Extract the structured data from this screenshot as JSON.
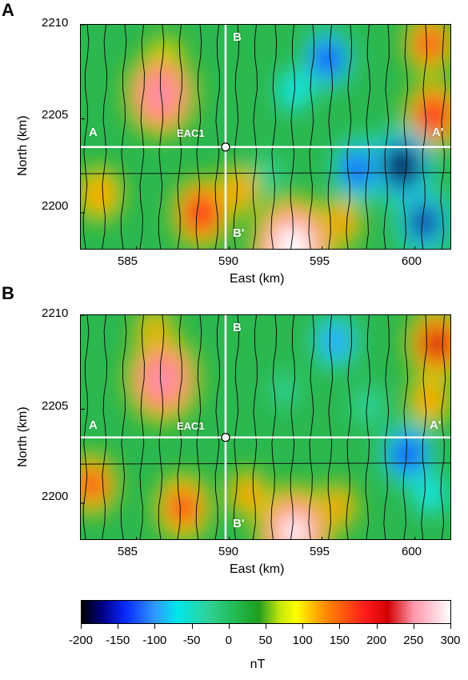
{
  "chart_data": [
    {
      "type": "heatmap",
      "panel_label": "A",
      "xlabel": "East (km)",
      "ylabel": "North (km)",
      "xlim": [
        582,
        602
      ],
      "ylim": [
        2198,
        2210
      ],
      "x_ticks": [
        585,
        590,
        595,
        600
      ],
      "y_ticks": [
        2200,
        2205,
        2210
      ],
      "profile_lines": [
        {
          "name": "A-A'",
          "start_label": "A",
          "end_label": "A'",
          "orientation": "east-west",
          "north_km": 2203.5
        },
        {
          "name": "B-B'",
          "start_label": "B",
          "end_label": "B'",
          "orientation": "north-south",
          "east_km": 589.8
        }
      ],
      "well": {
        "label": "EAC1",
        "east_km": 589.8,
        "north_km": 2203.5
      },
      "anomalies_nT": [
        {
          "east_km": 586.3,
          "north_km": 2206.3,
          "value": 230
        },
        {
          "east_km": 586.5,
          "north_km": 2208.0,
          "value": 120
        },
        {
          "east_km": 593.4,
          "north_km": 2198.2,
          "value": 290
        },
        {
          "east_km": 588.5,
          "north_km": 2200.0,
          "value": 180
        },
        {
          "east_km": 600.8,
          "north_km": 2209.0,
          "value": 150
        },
        {
          "east_km": 601.0,
          "north_km": 2205.2,
          "value": 180
        },
        {
          "east_km": 583.0,
          "north_km": 2201.0,
          "value": 130
        },
        {
          "east_km": 590.5,
          "north_km": 2201.2,
          "value": 110
        },
        {
          "east_km": 596.0,
          "north_km": 2199.5,
          "value": 110
        },
        {
          "east_km": 595.3,
          "north_km": 2208.2,
          "value": -140
        },
        {
          "east_km": 599.3,
          "north_km": 2202.5,
          "value": -200
        },
        {
          "east_km": 597.0,
          "north_km": 2202.3,
          "value": -150
        },
        {
          "east_km": 600.5,
          "north_km": 2199.5,
          "value": -170
        },
        {
          "east_km": 593.5,
          "north_km": 2206.5,
          "value": -80
        },
        {
          "east_km": 592.0,
          "north_km": 2202.0,
          "value": -60
        }
      ]
    },
    {
      "type": "heatmap",
      "panel_label": "B",
      "xlabel": "East (km)",
      "ylabel": "North (km)",
      "xlim": [
        582,
        602
      ],
      "ylim": [
        2198,
        2210
      ],
      "x_ticks": [
        585,
        590,
        595,
        600
      ],
      "y_ticks": [
        2200,
        2205,
        2210
      ],
      "profile_lines": [
        {
          "name": "A-A'",
          "start_label": "A",
          "end_label": "A'",
          "orientation": "east-west",
          "north_km": 2203.5
        },
        {
          "name": "B-B'",
          "start_label": "B",
          "end_label": "B'",
          "orientation": "north-south",
          "east_km": 589.8
        }
      ],
      "well": {
        "label": "EAC1",
        "east_km": 589.8,
        "north_km": 2203.5
      },
      "anomalies_nT": [
        {
          "east_km": 586.4,
          "north_km": 2206.6,
          "value": 240
        },
        {
          "east_km": 586.0,
          "north_km": 2209.0,
          "value": 110
        },
        {
          "east_km": 593.5,
          "north_km": 2198.5,
          "value": 260
        },
        {
          "east_km": 587.5,
          "north_km": 2199.8,
          "value": 170
        },
        {
          "east_km": 601.2,
          "north_km": 2208.5,
          "value": 190
        },
        {
          "east_km": 600.8,
          "north_km": 2205.5,
          "value": 120
        },
        {
          "east_km": 582.6,
          "north_km": 2201.0,
          "value": 150
        },
        {
          "east_km": 591.0,
          "north_km": 2200.5,
          "value": 100
        },
        {
          "east_km": 595.8,
          "north_km": 2199.8,
          "value": 100
        },
        {
          "east_km": 595.7,
          "north_km": 2208.6,
          "value": -120
        },
        {
          "east_km": 599.6,
          "north_km": 2202.6,
          "value": -150
        },
        {
          "east_km": 597.5,
          "north_km": 2205.2,
          "value": -60
        },
        {
          "east_km": 600.8,
          "north_km": 2200.5,
          "value": -80
        },
        {
          "east_km": 593.0,
          "north_km": 2206.0,
          "value": -40
        }
      ]
    }
  ],
  "colorbar": {
    "unit": "nT",
    "range": [
      -200,
      300
    ],
    "ticks": [
      "-200",
      "-150",
      "-100",
      "-50",
      "0",
      "50",
      "100",
      "150",
      "200",
      "250",
      "300"
    ],
    "stops": [
      {
        "value": -200,
        "color": "#000000"
      },
      {
        "value": -170,
        "color": "#00008c"
      },
      {
        "value": -140,
        "color": "#0a2aff"
      },
      {
        "value": -100,
        "color": "#2f9bff"
      },
      {
        "value": -70,
        "color": "#00e6ea"
      },
      {
        "value": -30,
        "color": "#2fd39a"
      },
      {
        "value": 10,
        "color": "#22b94e"
      },
      {
        "value": 40,
        "color": "#1f9e1f"
      },
      {
        "value": 70,
        "color": "#c8e80a"
      },
      {
        "value": 90,
        "color": "#ffff00"
      },
      {
        "value": 130,
        "color": "#ff8c00"
      },
      {
        "value": 185,
        "color": "#ff1a1a"
      },
      {
        "value": 215,
        "color": "#d10000"
      },
      {
        "value": 250,
        "color": "#ff96aa"
      },
      {
        "value": 300,
        "color": "#ffffff"
      }
    ]
  }
}
